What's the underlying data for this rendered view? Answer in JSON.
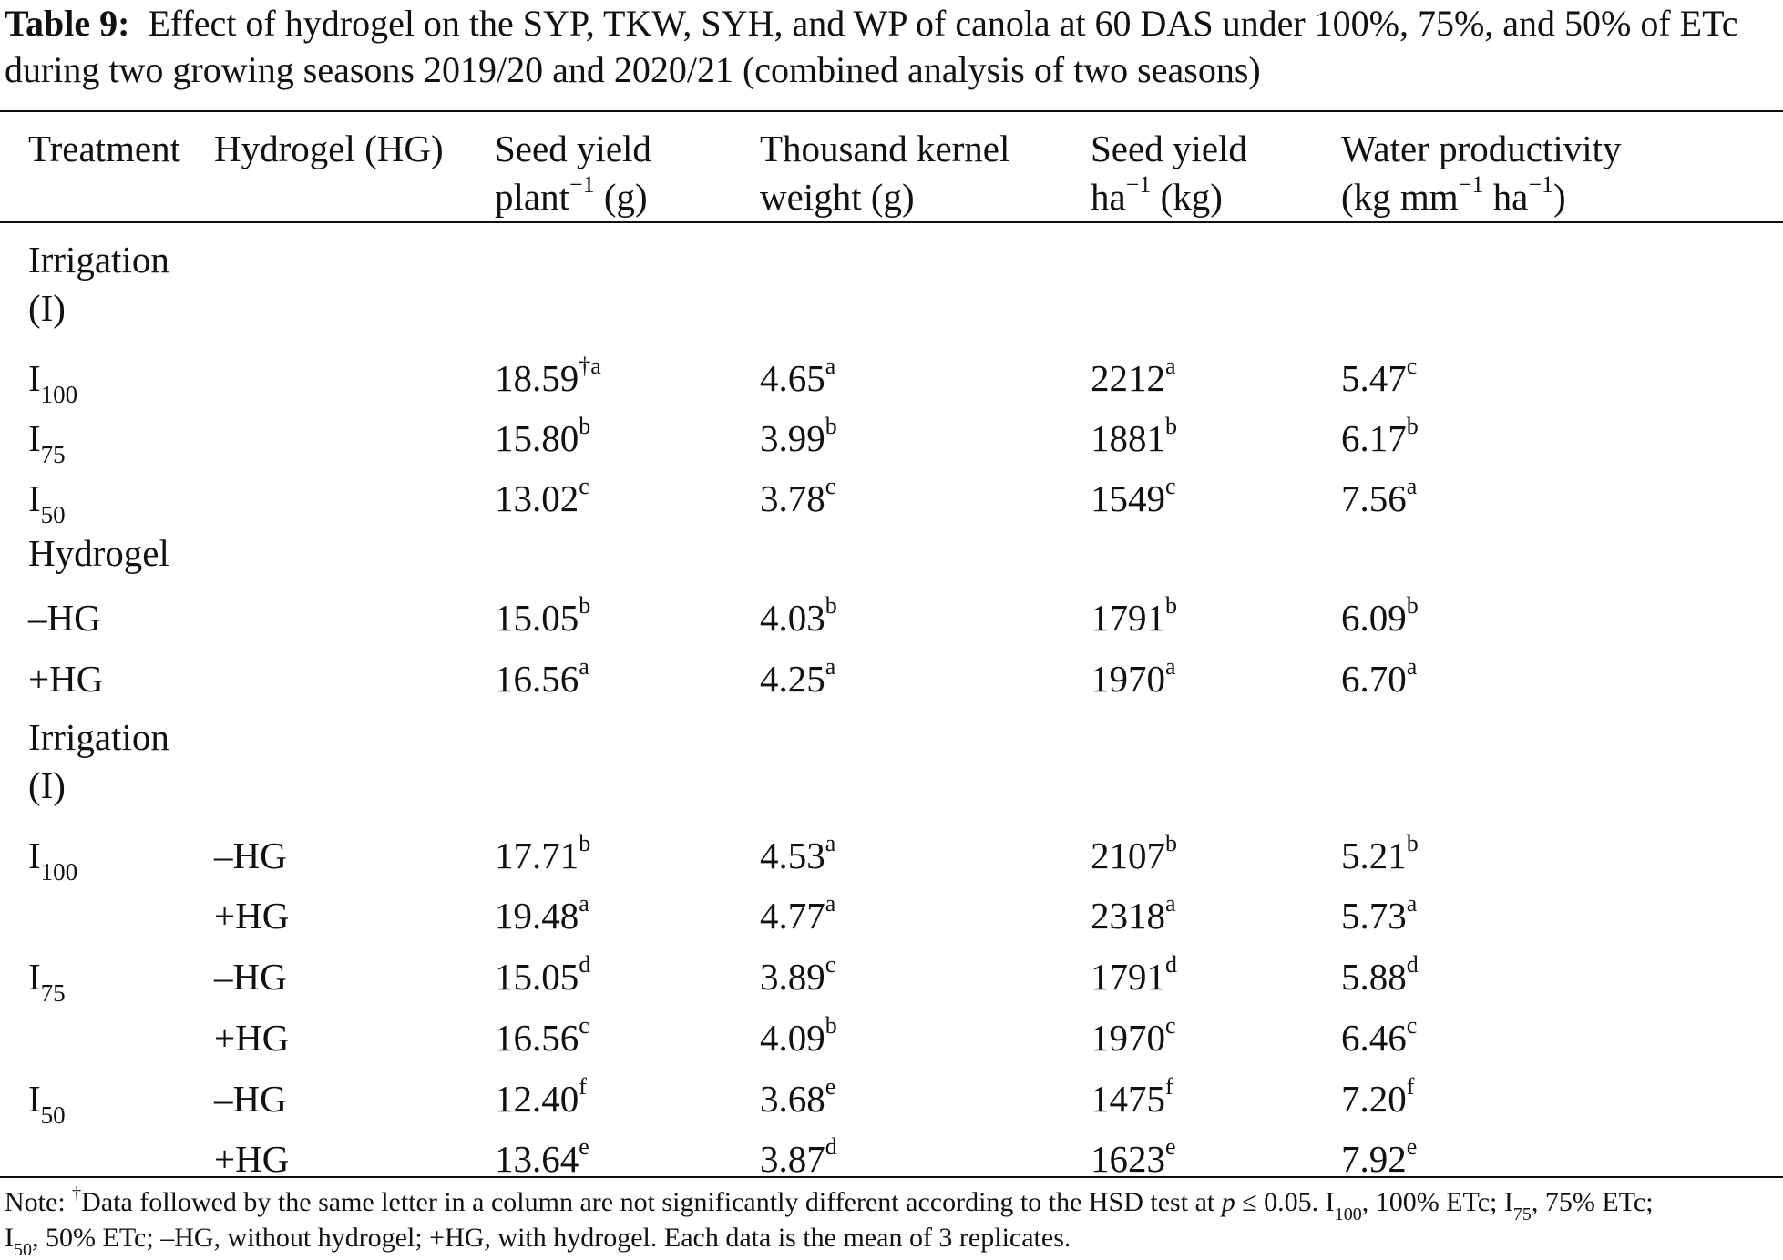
{
  "caption": {
    "label": "Table 9:",
    "text": "Effect of hydrogel on the SYP, TKW, SYH, and WP of canola at 60 DAS under 100%, 75%, and 50% of ETc during two growing seasons 2019/20 and 2020/21 (combined analysis of two seasons)"
  },
  "header": {
    "treatment": "Treatment",
    "hydrogel": "Hydrogel (HG)",
    "syp_line1": "Seed yield",
    "syp_line2_pre": "plant",
    "syp_line2_sup": "−1",
    "syp_line2_post": " (g)",
    "tkw_line1": "Thousand kernel",
    "tkw_line2": "weight (g)",
    "syh_line1": "Seed yield",
    "syh_line2_pre": "ha",
    "syh_line2_sup": "−1",
    "syh_line2_post": " (kg)",
    "wp_line1": "Water productivity",
    "wp_line2_a": "(kg mm",
    "wp_line2_sup1": "−1",
    "wp_line2_b": " ha",
    "wp_line2_sup2": "−1",
    "wp_line2_c": ")"
  },
  "sections": {
    "irrigation_line1": "Irrigation",
    "irrigation_line2": "(I)",
    "hydrogel": "Hydrogel"
  },
  "rows": [
    {
      "t_main": "I",
      "t_sub": "100",
      "hg": "",
      "syp": "18.59",
      "syp_sup": "†a",
      "tkw": "4.65",
      "tkw_sup": "a",
      "syh": "2212",
      "syh_sup": "a",
      "wp": "5.47",
      "wp_sup": "c"
    },
    {
      "t_main": "I",
      "t_sub": "75",
      "hg": "",
      "syp": "15.80",
      "syp_sup": "b",
      "tkw": "3.99",
      "tkw_sup": "b",
      "syh": "1881",
      "syh_sup": "b",
      "wp": "6.17",
      "wp_sup": "b"
    },
    {
      "t_main": "I",
      "t_sub": "50",
      "hg": "",
      "syp": "13.02",
      "syp_sup": "c",
      "tkw": "3.78",
      "tkw_sup": "c",
      "syh": "1549",
      "syh_sup": "c",
      "wp": "7.56",
      "wp_sup": "a"
    },
    {
      "t_main": "–HG",
      "t_sub": "",
      "hg": "",
      "syp": "15.05",
      "syp_sup": "b",
      "tkw": "4.03",
      "tkw_sup": "b",
      "syh": "1791",
      "syh_sup": "b",
      "wp": "6.09",
      "wp_sup": "b"
    },
    {
      "t_main": "+HG",
      "t_sub": "",
      "hg": "",
      "syp": "16.56",
      "syp_sup": "a",
      "tkw": "4.25",
      "tkw_sup": "a",
      "syh": "1970",
      "syh_sup": "a",
      "wp": "6.70",
      "wp_sup": "a"
    },
    {
      "t_main": "I",
      "t_sub": "100",
      "hg": "–HG",
      "syp": "17.71",
      "syp_sup": "b",
      "tkw": "4.53",
      "tkw_sup": "a",
      "syh": "2107",
      "syh_sup": "b",
      "wp": "5.21",
      "wp_sup": "b"
    },
    {
      "t_main": "",
      "t_sub": "",
      "hg": "+HG",
      "syp": "19.48",
      "syp_sup": "a",
      "tkw": "4.77",
      "tkw_sup": "a",
      "syh": "2318",
      "syh_sup": "a",
      "wp": "5.73",
      "wp_sup": "a"
    },
    {
      "t_main": "I",
      "t_sub": "75",
      "hg": "–HG",
      "syp": "15.05",
      "syp_sup": "d",
      "tkw": "3.89",
      "tkw_sup": "c",
      "syh": "1791",
      "syh_sup": "d",
      "wp": "5.88",
      "wp_sup": "d"
    },
    {
      "t_main": "",
      "t_sub": "",
      "hg": "+HG",
      "syp": "16.56",
      "syp_sup": "c",
      "tkw": "4.09",
      "tkw_sup": "b",
      "syh": "1970",
      "syh_sup": "c",
      "wp": "6.46",
      "wp_sup": "c"
    },
    {
      "t_main": "I",
      "t_sub": "50",
      "hg": "–HG",
      "syp": "12.40",
      "syp_sup": "f",
      "tkw": "3.68",
      "tkw_sup": "e",
      "syh": "1475",
      "syh_sup": "f",
      "wp": "7.20",
      "wp_sup": "f"
    },
    {
      "t_main": "",
      "t_sub": "",
      "hg": "+HG",
      "syp": "13.64",
      "syp_sup": "e",
      "tkw": "3.87",
      "tkw_sup": "d",
      "syh": "1623",
      "syh_sup": "e",
      "wp": "7.92",
      "wp_sup": "e"
    }
  ],
  "note": {
    "prefix": "Note: ",
    "dagger": "†",
    "t1": "Data followed by the same letter in a column are not significantly different according to the HSD test at ",
    "p": "p",
    "t2": " ≤ 0.05. I",
    "s100": "100",
    "t3": ", 100% ETc; I",
    "s75": "75",
    "t4": ", 75% ETc;",
    "t5": "I",
    "s50": "50",
    "t6": ", 50% ETc; –HG, without hydrogel; +HG, with hydrogel. Each data is the mean of 3 replicates."
  }
}
